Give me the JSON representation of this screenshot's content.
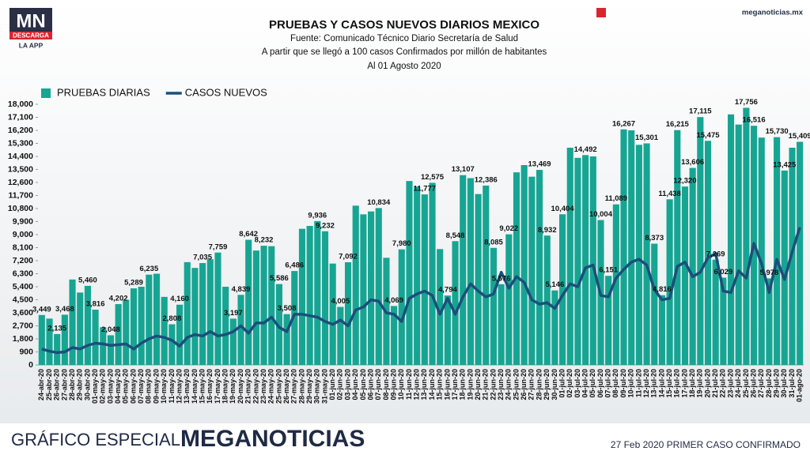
{
  "branding": {
    "logo": "MN",
    "logo_sub": "DESCARGA",
    "logo_sub2": "LA APP",
    "site": "meganoticias.mx",
    "footer_left": "GRÁFICO ESPECIAL",
    "footer_brand": "MEGANOTICIAS",
    "footer_right": "27 Feb 2020 PRIMER CASO CONFIRMADO"
  },
  "chart_data": {
    "type": "bar",
    "title": "PRUEBAS Y CASOS NUEVOS DIARIOS MEXICO",
    "subtitle": [
      "Fuente: Comunicado Técnico Diario Secretaría de Salud",
      "A partir que se llegó a 100 casos Confirmados por millón de habitantes",
      "Al 01 Agosto 2020"
    ],
    "categories": [
      "24-abr-20",
      "25-abr-20",
      "26-abr-20",
      "27-abr-20",
      "28-abr-20",
      "29-abr-20",
      "30-abr-20",
      "01-may-20",
      "02-may-20",
      "03-may-20",
      "04-may-20",
      "05-may-20",
      "06-may-20",
      "07-may-20",
      "08-may-20",
      "09-may-20",
      "10-may-20",
      "11-may-20",
      "12-may-20",
      "13-may-20",
      "14-may-20",
      "15-may-20",
      "16-may-20",
      "17-may-20",
      "18-may-20",
      "19-may-20",
      "20-may-20",
      "21-may-20",
      "22-may-20",
      "23-may-20",
      "24-may-20",
      "25-may-20",
      "26-may-20",
      "27-may-20",
      "28-may-20",
      "29-may-20",
      "30-may-20",
      "31-may-20",
      "01-jun-20",
      "02-jun-20",
      "03-jun-20",
      "04-jun-20",
      "05-jun-20",
      "06-jun-20",
      "07-jun-20",
      "08-jun-20",
      "09-jun-20",
      "10-jun-20",
      "11-jun-20",
      "12-jun-20",
      "13-jun-20",
      "14-jun-20",
      "15-jun-20",
      "16-jun-20",
      "17-jun-20",
      "18-jun-20",
      "19-jun-20",
      "20-jun-20",
      "21-jun-20",
      "22-jun-20",
      "23-jun-20",
      "24-jun-20",
      "25-jun-20",
      "26-jun-20",
      "27-jun-20",
      "28-jun-20",
      "29-jun-20",
      "30-jun-20",
      "01-jul-20",
      "02-jul-20",
      "03-jul-20",
      "04-jul-20",
      "05-jul-20",
      "06-jul-20",
      "07-jul-20",
      "08-jul-20",
      "09-jul-20",
      "10-jul-20",
      "11-jul-20",
      "12-jul-20",
      "13-jul-20",
      "14-jul-20",
      "15-jul-20",
      "16-jul-20",
      "17-jul-20",
      "18-jul-20",
      "19-jul-20",
      "20-jul-20",
      "21-jul-20",
      "22-jul-20",
      "23-jul-20",
      "24-jul-20",
      "25-jul-20",
      "26-jul-20",
      "27-jul-20",
      "28-jul-20",
      "29-jul-20",
      "30-jul-20",
      "31-jul-20",
      "01-ago-20"
    ],
    "series": [
      {
        "name": "PRUEBAS DIARIAS",
        "type": "bar",
        "color": "#17a593",
        "values": [
          3449,
          3200,
          2135,
          3468,
          5900,
          5000,
          5460,
          3816,
          2600,
          2048,
          4202,
          4500,
          5289,
          5400,
          6235,
          6300,
          4700,
          2808,
          4160,
          7100,
          6700,
          7035,
          7300,
          7759,
          5400,
          3197,
          4839,
          8642,
          7900,
          8232,
          8200,
          5586,
          3508,
          6486,
          9400,
          9600,
          9936,
          9232,
          7000,
          4005,
          7092,
          11000,
          10400,
          10600,
          10834,
          7400,
          4069,
          7980,
          12700,
          12300,
          11777,
          12575,
          8000,
          4794,
          8548,
          13107,
          12900,
          11800,
          12386,
          8085,
          5576,
          9022,
          13300,
          13800,
          13000,
          13469,
          8932,
          5146,
          10404,
          15000,
          14300,
          14492,
          14400,
          10004,
          6151,
          11089,
          16267,
          16200,
          15200,
          15301,
          8373,
          4816,
          11438,
          16215,
          12320,
          13606,
          17115,
          15475,
          7269,
          6029,
          17300,
          16600,
          17756,
          16516,
          15700,
          5978,
          15730,
          13425,
          15000,
          15409
        ],
        "value_labels": [
          "3,449",
          null,
          "2,135",
          "3,468",
          null,
          null,
          "5,460",
          "3,816",
          null,
          "2,048",
          "4,202",
          null,
          "5,289",
          null,
          "6,235",
          null,
          null,
          "2,808",
          "4,160",
          null,
          null,
          "7,035",
          null,
          "7,759",
          null,
          "3,197",
          "4,839",
          "8,642",
          null,
          "8,232",
          null,
          "5,586",
          "3,508",
          "6,486",
          null,
          null,
          "9,936",
          "9,232",
          null,
          "4,005",
          "7,092",
          null,
          null,
          null,
          "10,834",
          null,
          "4,069",
          "7,980",
          null,
          null,
          "11,777",
          "12,575",
          null,
          "4,794",
          "8,548",
          "13,107",
          null,
          null,
          "12,386",
          "8,085",
          "5,576",
          "9,022",
          null,
          null,
          null,
          "13,469",
          "8,932",
          "5,146",
          "10,404",
          null,
          null,
          "14,492",
          null,
          "10,004",
          "6,151",
          "11,089",
          "16,267",
          null,
          null,
          "15,301",
          "8,373",
          "4,816",
          "11,438",
          "16,215",
          "12,320",
          "13,606",
          "17,115",
          "15,475",
          "7,269",
          "6,029",
          null,
          null,
          "17,756",
          "16,516",
          null,
          "5,978",
          "15,730",
          "13,425",
          null,
          "15,409"
        ]
      },
      {
        "name": "CASOS NUEVOS",
        "type": "line",
        "color": "#1b4f7a",
        "values": [
          1100,
          950,
          850,
          900,
          1200,
          1100,
          1350,
          1500,
          1450,
          1350,
          1400,
          1450,
          1100,
          1500,
          1800,
          2000,
          1900,
          1700,
          1300,
          1900,
          2100,
          2000,
          2300,
          2000,
          2100,
          2300,
          2700,
          2200,
          2900,
          2900,
          3300,
          2600,
          2300,
          3500,
          3500,
          3400,
          3300,
          3000,
          2800,
          3100,
          2700,
          3800,
          4000,
          4500,
          4400,
          3600,
          3500,
          3000,
          4600,
          4900,
          5100,
          4800,
          3500,
          4600,
          3500,
          4700,
          5600,
          5100,
          4700,
          4900,
          6400,
          5300,
          6100,
          5700,
          4500,
          4200,
          4300,
          3900,
          4800,
          5600,
          5400,
          6700,
          6900,
          4800,
          4700,
          6000,
          6600,
          7100,
          7300,
          6900,
          5200,
          4500,
          4600,
          6800,
          7100,
          6100,
          6400,
          7400,
          7700,
          5100,
          5000,
          6500,
          6000,
          8400,
          7000,
          5000,
          7300,
          5900,
          7800,
          9500
        ]
      }
    ],
    "ylim": [
      0,
      18000
    ],
    "yticks": [
      0,
      900,
      {
        "value": 1800,
        "label": "1,800"
      },
      {
        "value": 2700,
        "label": "2,700"
      },
      {
        "value": 3600,
        "label": "3,600"
      },
      {
        "value": 4500,
        "label": "4,500"
      },
      {
        "value": 5400,
        "label": "5,400"
      },
      {
        "value": 6300,
        "label": "6,300"
      },
      {
        "value": 7200,
        "label": "7,200"
      },
      {
        "value": 8100,
        "label": "8,100"
      },
      {
        "value": 9000,
        "label": "9,000"
      },
      {
        "value": 9900,
        "label": "9,900"
      },
      {
        "value": 10800,
        "label": "10,800"
      },
      {
        "value": 11700,
        "label": "11,700"
      },
      {
        "value": 12600,
        "label": "12,600"
      },
      {
        "value": 13500,
        "label": "13,500"
      },
      {
        "value": 14400,
        "label": "14,400"
      },
      {
        "value": 15300,
        "label": "15,300"
      },
      {
        "value": 16200,
        "label": "16,200"
      },
      {
        "value": 17100,
        "label": "17,100"
      },
      {
        "value": 18000,
        "label": "18,000"
      }
    ],
    "grid": false,
    "legend": "top-left"
  }
}
